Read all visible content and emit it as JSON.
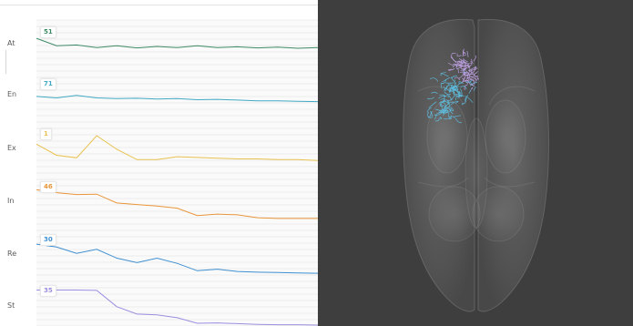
{
  "tracks": [
    {
      "label": "At",
      "value": "51",
      "color": "#3d8b66",
      "series": [
        0.8,
        0.6,
        0.62,
        0.55,
        0.6,
        0.54,
        0.58,
        0.55,
        0.6,
        0.55,
        0.57,
        0.54,
        0.56,
        0.53,
        0.55
      ]
    },
    {
      "label": "En",
      "value": "71",
      "color": "#42a8c4",
      "series": [
        0.62,
        0.58,
        0.65,
        0.58,
        0.56,
        0.57,
        0.55,
        0.56,
        0.53,
        0.54,
        0.52,
        0.5,
        0.5,
        0.49,
        0.48
      ]
    },
    {
      "label": "Ex",
      "value": "1",
      "color": "#e8c14e",
      "series": [
        0.72,
        0.42,
        0.35,
        0.95,
        0.58,
        0.3,
        0.3,
        0.38,
        0.36,
        0.34,
        0.32,
        0.32,
        0.3,
        0.3,
        0.28
      ]
    },
    {
      "label": "In",
      "value": "46",
      "color": "#e8963a",
      "series": [
        0.88,
        0.8,
        0.75,
        0.76,
        0.52,
        0.48,
        0.44,
        0.38,
        0.18,
        0.22,
        0.2,
        0.12,
        0.1,
        0.1,
        0.1
      ]
    },
    {
      "label": "Re",
      "value": "30",
      "color": "#3f8fd0",
      "series": [
        0.8,
        0.72,
        0.55,
        0.66,
        0.42,
        0.3,
        0.42,
        0.28,
        0.08,
        0.12,
        0.06,
        0.04,
        0.03,
        0.02,
        0.01
      ]
    },
    {
      "label": "St",
      "value": "35",
      "color": "#9a8ee0",
      "series": [
        0.95,
        0.95,
        0.95,
        0.94,
        0.5,
        0.3,
        0.28,
        0.2,
        0.05,
        0.06,
        0.04,
        0.02,
        0.01,
        0.01,
        0.0
      ]
    }
  ],
  "viewer": {
    "background": "#3e3e3e",
    "fiber_colors": [
      "#c9a8f0",
      "#5ec9ee"
    ]
  }
}
